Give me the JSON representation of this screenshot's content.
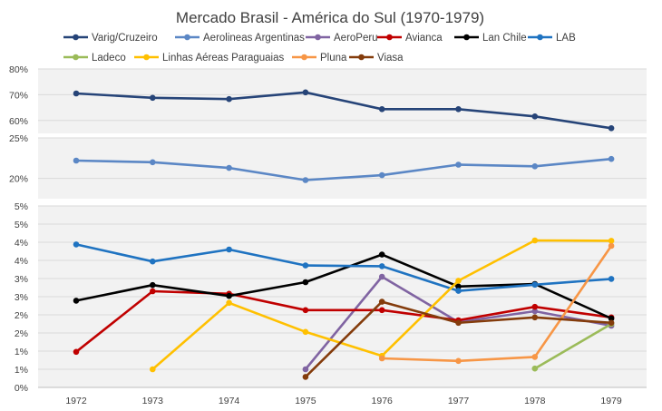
{
  "chart_data": {
    "type": "line",
    "title": "Mercado Brasil - América do Sul (1970-1979)",
    "x": [
      "1972",
      "1973",
      "1974",
      "1975",
      "1976",
      "1977",
      "1978",
      "1979"
    ],
    "legend_position": "top",
    "grid": true,
    "panels": [
      {
        "ylim": [
          0.55,
          0.8
        ],
        "yticks": [
          0.6,
          0.7,
          0.8
        ],
        "tick_labels": [
          "60%",
          "70%",
          "80%"
        ],
        "series": [
          "Varig/Cruzeiro"
        ]
      },
      {
        "ylim": [
          0.175,
          0.25
        ],
        "yticks": [
          0.2,
          0.25
        ],
        "tick_labels": [
          "20%",
          "25%"
        ],
        "series": [
          "Aerolineas Argentinas"
        ]
      },
      {
        "ylim": [
          0,
          0.05
        ],
        "yticks": [
          0,
          0.005,
          0.01,
          0.015,
          0.02,
          0.025,
          0.03,
          0.035,
          0.04,
          0.045,
          0.05
        ],
        "tick_labels": [
          "0%",
          "1%",
          "1%",
          "2%",
          "2%",
          "3%",
          "3%",
          "4%",
          "4%",
          "5%",
          "5%"
        ],
        "series": [
          "AeroPeru",
          "Avianca",
          "Lan Chile",
          "LAB",
          "Ladeco",
          "Linhas Aéreas Paraguaias",
          "Pluna",
          "Viasa"
        ]
      }
    ],
    "series": [
      {
        "name": "Varig/Cruzeiro",
        "color": "#264478",
        "values": [
          0.705,
          0.688,
          0.683,
          0.709,
          0.644,
          0.644,
          0.616,
          0.57
        ]
      },
      {
        "name": "Aerolineas Argentinas",
        "color": "#5b87c5",
        "values": [
          0.222,
          0.22,
          0.213,
          0.198,
          0.204,
          0.217,
          0.215,
          0.224
        ]
      },
      {
        "name": "AeroPeru",
        "color": "#8064a2",
        "values": [
          null,
          null,
          null,
          0.005,
          0.0305,
          0.018,
          0.021,
          0.017
        ]
      },
      {
        "name": "Avianca",
        "color": "#c00000",
        "values": [
          0.0098,
          0.0265,
          0.0258,
          0.0213,
          0.0213,
          0.0185,
          0.0222,
          0.0193
        ]
      },
      {
        "name": "Lan Chile",
        "color": "#000000",
        "values": [
          0.0239,
          0.0282,
          0.0252,
          0.029,
          0.0366,
          0.0278,
          0.0285,
          0.019
        ]
      },
      {
        "name": "LAB",
        "color": "#1f73c1",
        "values": [
          0.0394,
          0.0347,
          0.038,
          0.0336,
          0.0334,
          0.0266,
          0.0283,
          0.0299
        ]
      },
      {
        "name": "Ladeco",
        "color": "#9bbb59",
        "values": [
          null,
          null,
          null,
          null,
          null,
          null,
          0.0052,
          0.0175
        ]
      },
      {
        "name": "Linhas Aéreas Paraguaias",
        "color": "#ffc000",
        "values": [
          null,
          0.005,
          0.0233,
          0.0153,
          0.0087,
          0.0294,
          0.0405,
          0.0404
        ]
      },
      {
        "name": "Pluna",
        "color": "#f79646",
        "values": [
          null,
          null,
          null,
          null,
          0.008,
          0.0073,
          0.0084,
          0.039
        ]
      },
      {
        "name": "Viasa",
        "color": "#843c0c",
        "values": [
          null,
          null,
          null,
          0.0029,
          0.0236,
          0.0178,
          0.0193,
          0.0178
        ]
      }
    ]
  }
}
